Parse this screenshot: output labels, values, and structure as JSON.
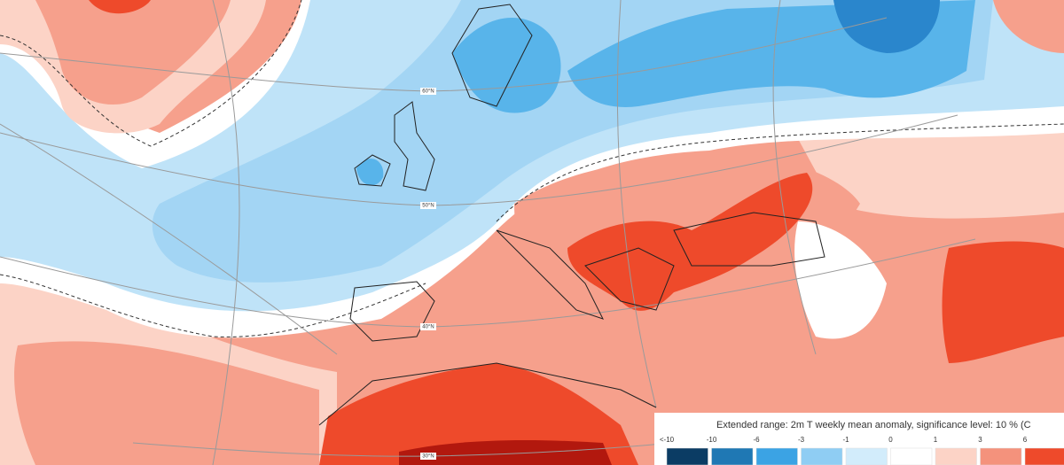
{
  "map": {
    "lat_labels": [
      "60°N",
      "50°N",
      "40°N",
      "30°N"
    ],
    "legend": {
      "title": "Extended range: 2m T weekly mean anomaly, significance level: 10 % (C",
      "labels": [
        "<-10",
        "-10",
        "-6",
        "-3",
        "-1",
        "0",
        "1",
        "3",
        "6"
      ],
      "colors": [
        "#0b3c64",
        "#1f78b4",
        "#3ba3e4",
        "#8fcdf3",
        "#d2ecfb",
        "#ffffff",
        "#fcd3c6",
        "#f4927c",
        "#ee4a2b",
        "#b2180e"
      ]
    }
  }
}
